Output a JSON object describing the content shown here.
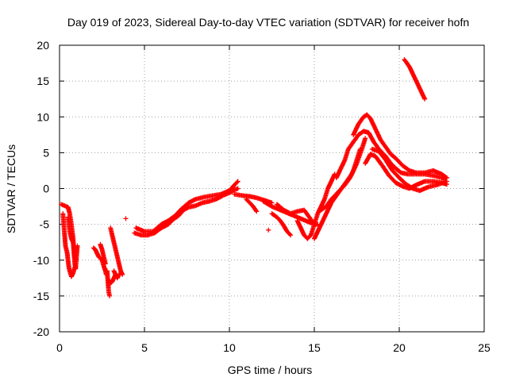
{
  "chart_data": {
    "type": "scatter",
    "title": "Day 019 of 2023, Sidereal Day-to-day VTEC variation (SDTVAR) for receiver hofn",
    "xlabel": "GPS time / hours",
    "ylabel": "SDTVAR / TECUs",
    "xlim": [
      0,
      25
    ],
    "ylim": [
      -20,
      20
    ],
    "xticks": [
      "0",
      "5",
      "10",
      "15",
      "20",
      "25"
    ],
    "yticks": [
      "-20",
      "-15",
      "-10",
      "-5",
      "0",
      "5",
      "10",
      "15",
      "20"
    ],
    "grid": true,
    "marker": "plus",
    "colors": {
      "series": "#ff0000",
      "axis": "#000000",
      "grid": "#a0a0a0"
    },
    "series": [
      {
        "name": "hofn",
        "segments": [
          [
            [
              0.1,
              -2.2
            ],
            [
              0.3,
              -2.4
            ],
            [
              0.5,
              -2.6
            ],
            [
              0.6,
              -3.5
            ],
            [
              0.7,
              -5
            ],
            [
              0.8,
              -7
            ],
            [
              0.85,
              -9
            ],
            [
              0.9,
              -10.5
            ],
            [
              0.95,
              -11.2
            ],
            [
              1.0,
              -9.5
            ],
            [
              1.05,
              -8
            ]
          ],
          [
            [
              0.2,
              -3.5
            ],
            [
              0.25,
              -5
            ],
            [
              0.3,
              -6.5
            ],
            [
              0.35,
              -8
            ],
            [
              0.4,
              -8.5
            ],
            [
              0.45,
              -9
            ],
            [
              0.5,
              -10
            ],
            [
              0.55,
              -11
            ],
            [
              0.6,
              -11.5
            ],
            [
              0.7,
              -12.3
            ],
            [
              0.8,
              -11.8
            ],
            [
              0.9,
              -11
            ]
          ],
          [
            [
              0.5,
              -4
            ],
            [
              0.55,
              -5
            ],
            [
              0.6,
              -6
            ],
            [
              0.7,
              -7
            ],
            [
              0.8,
              -7.5
            ],
            [
              0.85,
              -8.5
            ],
            [
              0.9,
              -9.5
            ],
            [
              0.95,
              -10
            ]
          ],
          [
            [
              2.0,
              -8.3
            ],
            [
              2.1,
              -8.5
            ],
            [
              2.3,
              -9.5
            ],
            [
              2.5,
              -10
            ],
            [
              2.6,
              -10.8
            ],
            [
              2.7,
              -11.5
            ],
            [
              2.75,
              -12
            ]
          ],
          [
            [
              2.4,
              -7.8
            ],
            [
              2.5,
              -8.5
            ],
            [
              2.6,
              -9.5
            ],
            [
              2.7,
              -10.5
            ]
          ],
          [
            [
              2.8,
              -11.5
            ],
            [
              2.85,
              -13
            ],
            [
              2.9,
              -14.5
            ],
            [
              2.95,
              -15
            ]
          ],
          [
            [
              2.9,
              -12.8
            ],
            [
              3.0,
              -13.2
            ],
            [
              3.1,
              -13
            ],
            [
              3.2,
              -12.5
            ],
            [
              3.3,
              -12
            ]
          ],
          [
            [
              3.0,
              -5.5
            ],
            [
              3.1,
              -6.5
            ],
            [
              3.2,
              -7.5
            ],
            [
              3.3,
              -8.5
            ],
            [
              3.4,
              -9.5
            ],
            [
              3.5,
              -10.5
            ],
            [
              3.6,
              -11.5
            ],
            [
              3.7,
              -12
            ]
          ],
          [
            [
              3.2,
              -11.5
            ],
            [
              3.4,
              -12.5
            ],
            [
              3.5,
              -12
            ]
          ],
          [
            [
              3.9,
              -4.2
            ]
          ],
          [
            [
              4.4,
              -6.2
            ],
            [
              4.8,
              -6.5
            ],
            [
              5.2,
              -6.5
            ],
            [
              5.6,
              -6.2
            ],
            [
              6.0,
              -5.5
            ],
            [
              6.4,
              -5
            ],
            [
              6.7,
              -4.3
            ],
            [
              7.0,
              -3.8
            ],
            [
              7.3,
              -3
            ],
            [
              7.6,
              -2.6
            ],
            [
              8.0,
              -2.4
            ],
            [
              8.4,
              -2
            ],
            [
              8.8,
              -1.8
            ],
            [
              9.2,
              -1.5
            ],
            [
              9.6,
              -1
            ],
            [
              10.0,
              -0.6
            ],
            [
              10.3,
              -0.2
            ],
            [
              10.5,
              0
            ]
          ],
          [
            [
              4.5,
              -5.5
            ],
            [
              5.0,
              -6
            ],
            [
              5.5,
              -6
            ],
            [
              6.0,
              -5
            ],
            [
              6.4,
              -4.5
            ],
            [
              6.8,
              -3.8
            ],
            [
              7.2,
              -2.8
            ],
            [
              7.6,
              -2
            ],
            [
              8.0,
              -1.5
            ],
            [
              8.5,
              -1.2
            ],
            [
              9.0,
              -1
            ],
            [
              9.5,
              -0.8
            ],
            [
              10.0,
              -0.3
            ],
            [
              10.3,
              0.5
            ],
            [
              10.5,
              1
            ]
          ],
          [
            [
              10.3,
              -0.8
            ],
            [
              10.8,
              -1
            ],
            [
              11.2,
              -1.1
            ],
            [
              11.6,
              -1.3
            ],
            [
              12.0,
              -1.6
            ],
            [
              12.5,
              -2
            ]
          ],
          [
            [
              11.0,
              -1.5
            ],
            [
              11.2,
              -2
            ],
            [
              11.4,
              -2.5
            ],
            [
              11.6,
              -3.2
            ]
          ],
          [
            [
              12.0,
              -1.8
            ],
            [
              12.5,
              -2.5
            ],
            [
              13.0,
              -3
            ],
            [
              13.5,
              -3.5
            ],
            [
              14.0,
              -4
            ],
            [
              14.5,
              -4.5
            ],
            [
              15.0,
              -5
            ],
            [
              15.2,
              -5
            ]
          ],
          [
            [
              12.3,
              -5.8
            ]
          ],
          [
            [
              12.5,
              -3.5
            ],
            [
              12.8,
              -4
            ],
            [
              13.0,
              -4.5
            ],
            [
              13.2,
              -5.2
            ],
            [
              13.4,
              -6
            ],
            [
              13.6,
              -6.5
            ]
          ],
          [
            [
              12.8,
              -2.2
            ],
            [
              13.2,
              -3
            ],
            [
              13.6,
              -3.5
            ],
            [
              14.0,
              -3.2
            ],
            [
              14.4,
              -3
            ],
            [
              14.7,
              -4
            ],
            [
              15.0,
              -5
            ]
          ],
          [
            [
              14.0,
              -4.5
            ],
            [
              14.2,
              -5.5
            ],
            [
              14.4,
              -6.5
            ],
            [
              14.6,
              -7
            ],
            [
              14.8,
              -6.5
            ],
            [
              15.0,
              -5
            ],
            [
              15.2,
              -3.5
            ],
            [
              15.4,
              -2.5
            ],
            [
              15.6,
              -1.5
            ],
            [
              15.8,
              0
            ],
            [
              16.0,
              1
            ],
            [
              16.2,
              2
            ]
          ],
          [
            [
              15.0,
              -7
            ],
            [
              15.2,
              -6
            ],
            [
              15.4,
              -5
            ],
            [
              15.6,
              -4
            ],
            [
              15.8,
              -3
            ],
            [
              16.0,
              -2
            ],
            [
              16.3,
              -1
            ],
            [
              16.6,
              0
            ],
            [
              16.9,
              1
            ],
            [
              17.2,
              2
            ],
            [
              17.5,
              3.5
            ],
            [
              17.8,
              5.5
            ],
            [
              18.0,
              7
            ]
          ],
          [
            [
              15.4,
              -3
            ],
            [
              15.7,
              -2.5
            ],
            [
              16.0,
              -1.5
            ],
            [
              16.4,
              -0.5
            ],
            [
              16.8,
              0.5
            ],
            [
              17.1,
              1.5
            ],
            [
              17.3,
              2.5
            ],
            [
              17.5,
              4
            ],
            [
              17.7,
              5.5
            ]
          ],
          [
            [
              16.3,
              1.5
            ],
            [
              16.5,
              2.5
            ],
            [
              16.8,
              4
            ],
            [
              17.0,
              5.5
            ],
            [
              17.3,
              6.5
            ],
            [
              17.6,
              7.5
            ],
            [
              17.9,
              8
            ],
            [
              18.2,
              7.8
            ],
            [
              18.5,
              6.5
            ],
            [
              18.8,
              5.5
            ],
            [
              19.2,
              4.5
            ],
            [
              19.5,
              3.5
            ],
            [
              19.8,
              2.8
            ],
            [
              20.1,
              2.2
            ],
            [
              20.5,
              2
            ],
            [
              21.0,
              2
            ],
            [
              21.5,
              2
            ],
            [
              22.0,
              1.8
            ],
            [
              22.5,
              1.5
            ],
            [
              22.8,
              1.5
            ]
          ],
          [
            [
              17.3,
              7.5
            ],
            [
              17.6,
              9
            ],
            [
              17.9,
              10
            ],
            [
              18.1,
              10.3
            ],
            [
              18.3,
              9.8
            ],
            [
              18.6,
              8.3
            ],
            [
              18.9,
              6.8
            ],
            [
              19.2,
              5.8
            ],
            [
              19.5,
              4.8
            ],
            [
              19.8,
              4.2
            ],
            [
              20.2,
              3.2
            ],
            [
              20.6,
              2.5
            ],
            [
              21.0,
              2.2
            ],
            [
              21.5,
              2.2
            ],
            [
              22.0,
              2.5
            ],
            [
              22.5,
              2
            ],
            [
              22.8,
              1.5
            ]
          ],
          [
            [
              18.0,
              3.5
            ],
            [
              18.3,
              4.8
            ],
            [
              18.6,
              4.5
            ],
            [
              19.0,
              3.2
            ],
            [
              19.4,
              1.8
            ],
            [
              19.8,
              0.8
            ],
            [
              20.2,
              0.3
            ],
            [
              20.6,
              0
            ],
            [
              21.0,
              0.5
            ],
            [
              21.5,
              1
            ],
            [
              22.0,
              1
            ],
            [
              22.5,
              0.8
            ],
            [
              22.8,
              0.6
            ]
          ],
          [
            [
              18.4,
              5.5
            ],
            [
              18.8,
              5.2
            ],
            [
              19.2,
              4
            ],
            [
              19.6,
              2.5
            ],
            [
              20.0,
              1.5
            ],
            [
              20.4,
              0.6
            ],
            [
              20.8,
              0
            ],
            [
              21.2,
              -0.3
            ],
            [
              21.7,
              0.2
            ],
            [
              22.2,
              0.5
            ],
            [
              22.8,
              1
            ]
          ],
          [
            [
              20.3,
              18
            ],
            [
              20.6,
              17
            ],
            [
              20.9,
              15.5
            ],
            [
              21.2,
              14
            ],
            [
              21.5,
              12.5
            ]
          ]
        ]
      }
    ]
  }
}
